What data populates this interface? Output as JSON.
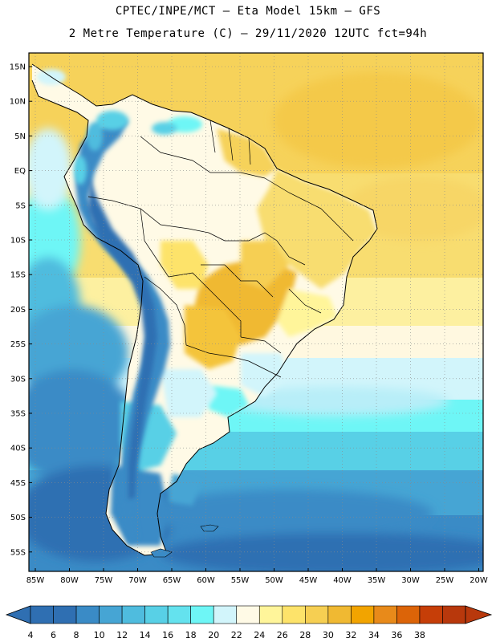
{
  "header": {
    "line1": "CPTEC/INPE/MCT –  Eta Model 15km – GFS",
    "line2": "2 Metre Temperature (C) – 29/11/2020 12UTC fct=94h"
  },
  "axes": {
    "lat_labels": [
      "15N",
      "10N",
      "5N",
      "EQ",
      "5S",
      "10S",
      "15S",
      "20S",
      "25S",
      "30S",
      "35S",
      "40S",
      "45S",
      "50S",
      "55S"
    ],
    "lon_labels": [
      "85W",
      "80W",
      "75W",
      "70W",
      "65W",
      "60W",
      "55W",
      "50W",
      "45W",
      "40W",
      "35W",
      "30W",
      "25W",
      "20W"
    ]
  },
  "colorbar": {
    "ticks": [
      "4",
      "6",
      "8",
      "10",
      "12",
      "14",
      "16",
      "18",
      "20",
      "22",
      "24",
      "26",
      "28",
      "30",
      "32",
      "34",
      "36",
      "38"
    ],
    "colors": [
      "#2f6fb2",
      "#2f6fb2",
      "#3a8bc6",
      "#46a5d4",
      "#4fbcde",
      "#58d0e6",
      "#64e2ee",
      "#6ef6f6",
      "#d2f5fb",
      "#fffae6",
      "#fff59a",
      "#fde36a",
      "#f6cf52",
      "#f0b932",
      "#f2a400",
      "#e88a1a",
      "#dc6408",
      "#c63e08",
      "#b8380c"
    ]
  },
  "map": {
    "region": "South America",
    "field": "2 m temperature"
  }
}
